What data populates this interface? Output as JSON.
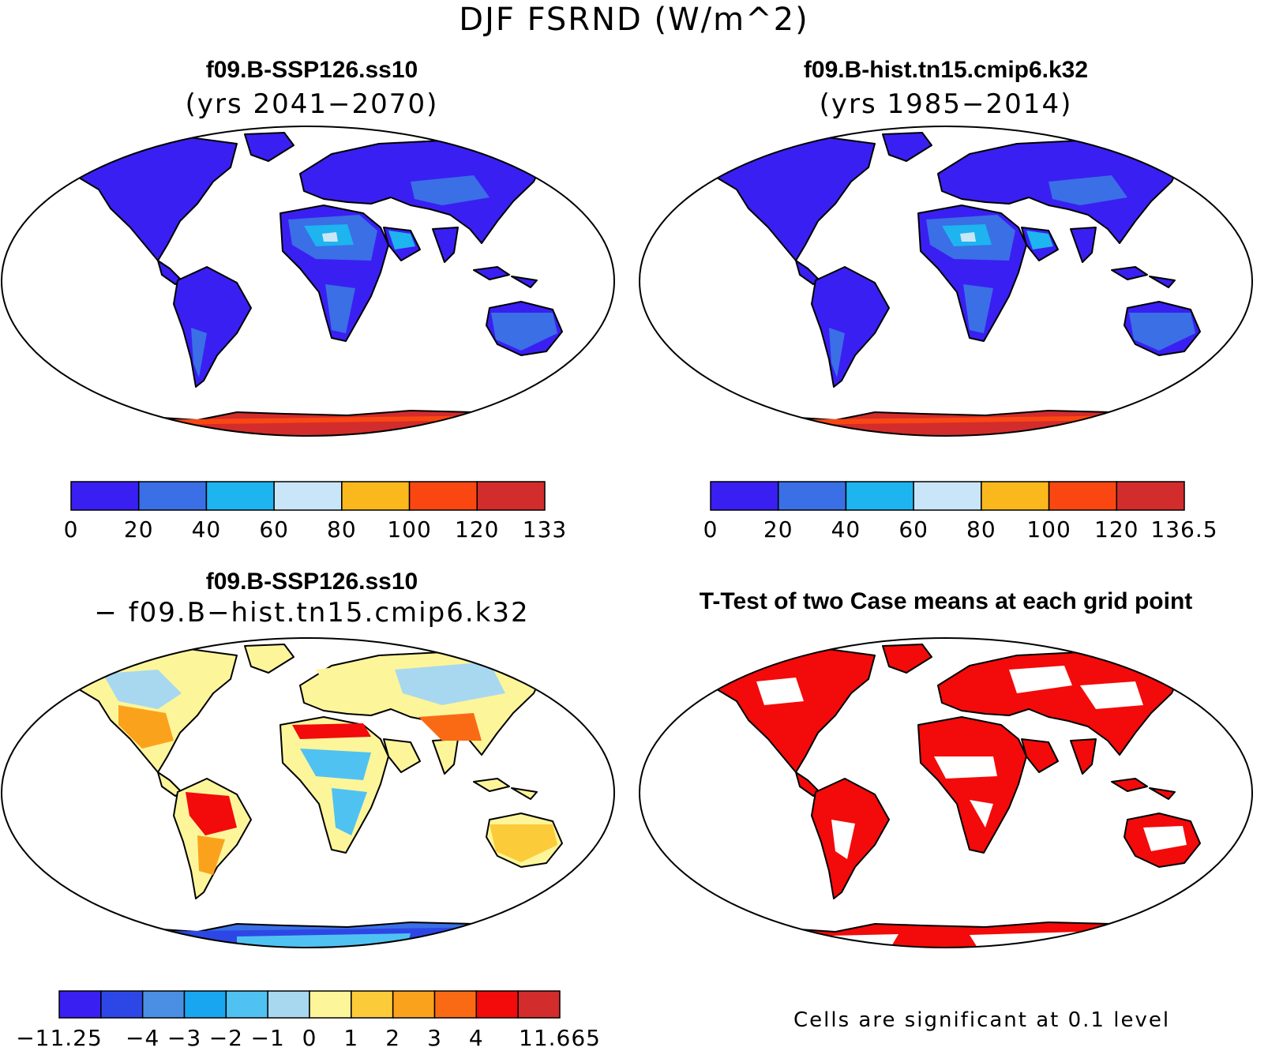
{
  "title": "DJF FSRND (W/m^2)",
  "panels": [
    {
      "id": "case",
      "title": "f09.B-SSP126.ss10",
      "subtitle": "(yrs 2041−2070)"
    },
    {
      "id": "control",
      "title": "f09.B-hist.tn15.cmip6.k32",
      "subtitle": "(yrs 1985−2014)"
    },
    {
      "id": "diff",
      "title": "f09.B-SSP126.ss10",
      "subtitle": "− f09.B−hist.tn15.cmip6.k32"
    },
    {
      "id": "ttest",
      "title": "T-Test of two Case means at each grid point",
      "subtitle": ""
    }
  ],
  "colorbars": {
    "case": {
      "colors": [
        "#3a1ff2",
        "#3a6fe6",
        "#1eb4ef",
        "#c8e6f7",
        "#fbb81c",
        "#fa4712",
        "#d32c2c"
      ],
      "labels": [
        "0",
        "20",
        "40",
        "60",
        "80",
        "100",
        "120",
        "133"
      ]
    },
    "control": {
      "colors": [
        "#3a1ff2",
        "#3a6fe6",
        "#1eb4ef",
        "#c8e6f7",
        "#fbb81c",
        "#fa4712",
        "#d32c2c"
      ],
      "labels": [
        "0",
        "20",
        "40",
        "60",
        "80",
        "100",
        "120",
        "136.5"
      ]
    },
    "diff": {
      "colors": [
        "#3a1ff2",
        "#2d47e6",
        "#4a8fe3",
        "#19a6f0",
        "#4fc2f2",
        "#a8d8f0",
        "#fdf59a",
        "#fccb3a",
        "#fba21c",
        "#fa6a14",
        "#f30a0a",
        "#d32c2c"
      ],
      "labels": [
        "−11.25",
        "−4",
        "−3",
        "−2",
        "−1",
        "0",
        "1",
        "2",
        "3",
        "4",
        "11.665"
      ]
    }
  },
  "significance_note": "Cells are significant at 0.1 level",
  "map_colors": {
    "land_case": "#3a1ff2",
    "land_diff": "#fdf59a",
    "significant": "#f30a0a",
    "antarctic_case": "#d32c2c",
    "antarctic_diff": "#3a6fe6",
    "coast": "#000000"
  }
}
